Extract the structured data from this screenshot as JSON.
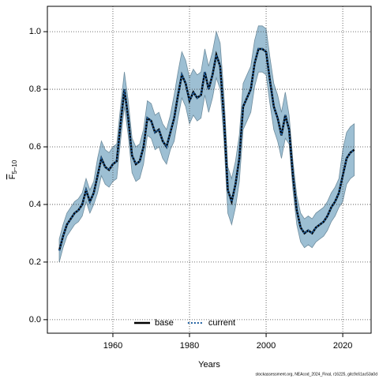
{
  "chart_data": {
    "type": "line",
    "xlabel": "Years",
    "ylabel": "F",
    "ylabel_subscript": "5–10",
    "footnote": "stockassessment.org, NEAcod_2024_Final, r16225, gitc9c61ac53a0d",
    "x": [
      1946,
      1947,
      1948,
      1949,
      1950,
      1951,
      1952,
      1953,
      1954,
      1955,
      1956,
      1957,
      1958,
      1959,
      1960,
      1961,
      1962,
      1963,
      1964,
      1965,
      1966,
      1967,
      1968,
      1969,
      1970,
      1971,
      1972,
      1973,
      1974,
      1975,
      1976,
      1977,
      1978,
      1979,
      1980,
      1981,
      1982,
      1983,
      1984,
      1985,
      1986,
      1987,
      1988,
      1989,
      1990,
      1991,
      1992,
      1993,
      1994,
      1995,
      1996,
      1997,
      1998,
      1999,
      2000,
      2001,
      2002,
      2003,
      2004,
      2005,
      2006,
      2007,
      2008,
      2009,
      2010,
      2011,
      2012,
      2013,
      2014,
      2015,
      2016,
      2017,
      2018,
      2019,
      2020,
      2021,
      2022,
      2023
    ],
    "series": [
      {
        "name": "base",
        "color": "#000000",
        "dash": "none",
        "width": 2.5,
        "values": [
          0.24,
          0.29,
          0.33,
          0.35,
          0.37,
          0.38,
          0.4,
          0.45,
          0.41,
          0.44,
          0.5,
          0.56,
          0.53,
          0.52,
          0.54,
          0.55,
          0.68,
          0.8,
          0.7,
          0.57,
          0.54,
          0.55,
          0.6,
          0.7,
          0.69,
          0.65,
          0.66,
          0.62,
          0.6,
          0.65,
          0.7,
          0.78,
          0.85,
          0.82,
          0.76,
          0.79,
          0.77,
          0.78,
          0.86,
          0.8,
          0.85,
          0.92,
          0.88,
          0.7,
          0.45,
          0.41,
          0.47,
          0.56,
          0.74,
          0.77,
          0.8,
          0.89,
          0.94,
          0.94,
          0.93,
          0.83,
          0.74,
          0.7,
          0.64,
          0.71,
          0.66,
          0.5,
          0.38,
          0.32,
          0.3,
          0.31,
          0.3,
          0.32,
          0.33,
          0.34,
          0.36,
          0.39,
          0.41,
          0.44,
          0.5,
          0.56,
          0.58,
          0.59
        ]
      },
      {
        "name": "current",
        "color": "#1f5fa0",
        "dash": "2,2",
        "width": 2,
        "values": [
          0.24,
          0.29,
          0.33,
          0.35,
          0.37,
          0.38,
          0.4,
          0.45,
          0.41,
          0.44,
          0.5,
          0.56,
          0.53,
          0.52,
          0.54,
          0.55,
          0.68,
          0.8,
          0.7,
          0.57,
          0.54,
          0.55,
          0.6,
          0.7,
          0.69,
          0.65,
          0.66,
          0.62,
          0.6,
          0.65,
          0.7,
          0.78,
          0.85,
          0.82,
          0.76,
          0.79,
          0.77,
          0.78,
          0.86,
          0.8,
          0.85,
          0.92,
          0.88,
          0.7,
          0.45,
          0.41,
          0.47,
          0.56,
          0.74,
          0.77,
          0.8,
          0.89,
          0.94,
          0.94,
          0.93,
          0.83,
          0.74,
          0.7,
          0.64,
          0.71,
          0.66,
          0.5,
          0.38,
          0.32,
          0.3,
          0.31,
          0.3,
          0.32,
          0.33,
          0.34,
          0.36,
          0.39,
          0.41,
          0.44,
          0.5,
          0.56,
          0.58,
          0.59
        ]
      }
    ],
    "band": {
      "color": "#9dbfd3",
      "edge": "#6f8d9e",
      "lower": [
        0.2,
        0.25,
        0.29,
        0.31,
        0.33,
        0.34,
        0.36,
        0.41,
        0.37,
        0.4,
        0.44,
        0.5,
        0.47,
        0.46,
        0.48,
        0.49,
        0.62,
        0.74,
        0.64,
        0.51,
        0.48,
        0.49,
        0.54,
        0.64,
        0.63,
        0.59,
        0.6,
        0.56,
        0.54,
        0.59,
        0.62,
        0.7,
        0.77,
        0.74,
        0.68,
        0.71,
        0.69,
        0.7,
        0.78,
        0.72,
        0.77,
        0.84,
        0.8,
        0.62,
        0.37,
        0.33,
        0.39,
        0.48,
        0.66,
        0.69,
        0.72,
        0.81,
        0.86,
        0.86,
        0.85,
        0.75,
        0.66,
        0.62,
        0.56,
        0.63,
        0.61,
        0.45,
        0.33,
        0.27,
        0.25,
        0.26,
        0.25,
        0.27,
        0.28,
        0.29,
        0.31,
        0.34,
        0.36,
        0.39,
        0.41,
        0.47,
        0.49,
        0.5
      ],
      "upper": [
        0.28,
        0.33,
        0.37,
        0.39,
        0.41,
        0.42,
        0.44,
        0.49,
        0.45,
        0.48,
        0.56,
        0.62,
        0.59,
        0.58,
        0.6,
        0.61,
        0.74,
        0.86,
        0.76,
        0.63,
        0.6,
        0.61,
        0.66,
        0.76,
        0.75,
        0.71,
        0.72,
        0.68,
        0.66,
        0.71,
        0.78,
        0.86,
        0.93,
        0.9,
        0.84,
        0.87,
        0.85,
        0.86,
        0.94,
        0.88,
        0.93,
        1.0,
        0.96,
        0.78,
        0.53,
        0.49,
        0.55,
        0.64,
        0.82,
        0.85,
        0.88,
        0.97,
        1.02,
        1.02,
        1.01,
        0.91,
        0.82,
        0.78,
        0.72,
        0.79,
        0.71,
        0.55,
        0.43,
        0.37,
        0.35,
        0.36,
        0.35,
        0.37,
        0.38,
        0.39,
        0.41,
        0.44,
        0.46,
        0.49,
        0.59,
        0.65,
        0.67,
        0.68
      ]
    },
    "xlim": [
      1942.9,
      2027.4
    ],
    "ylim": [
      -0.047,
      1.088
    ],
    "xticks": [
      1960,
      1980,
      2000,
      2020
    ],
    "yticks": [
      {
        "value": 0,
        "label": "0.0"
      },
      0.2,
      0.4,
      0.6,
      0.8,
      {
        "value": 1,
        "label": "1.0"
      }
    ],
    "grid": true,
    "legend": "bottom"
  }
}
